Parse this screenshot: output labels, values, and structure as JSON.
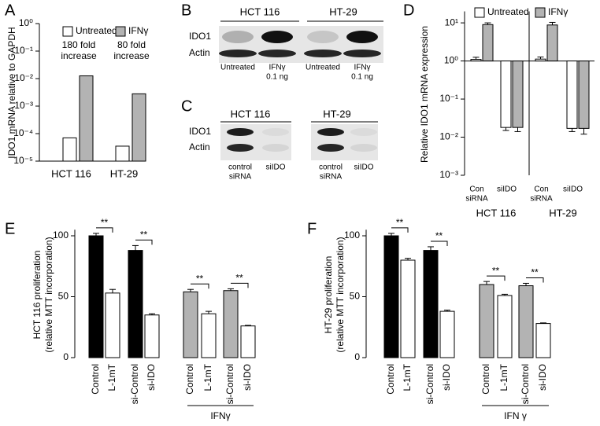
{
  "chart_data": [
    {
      "panel": "A",
      "type": "bar",
      "log_scale": true,
      "categories": [
        "HCT 116",
        "HT-29"
      ],
      "series": [
        {
          "name": "Untreated",
          "color": "#ffffff",
          "values": [
            7e-05,
            3.5e-05
          ]
        },
        {
          "name": "IFNγ",
          "color": "#b3b3b3",
          "values": [
            0.0126,
            0.0028
          ]
        }
      ],
      "ylim": [
        1e-05,
        1
      ],
      "yticks": [
        {
          "value": 1e-05,
          "label": "10⁻⁵"
        },
        {
          "value": 0.0001,
          "label": "10⁻⁴"
        },
        {
          "value": 0.001,
          "label": "10⁻³"
        },
        {
          "value": 0.01,
          "label": "10⁻²"
        },
        {
          "value": 0.1,
          "label": "10⁻¹"
        },
        {
          "value": 1,
          "label": "10⁰"
        }
      ],
      "ylabel": [
        "IDO1 mRNA relative to GAPDH"
      ],
      "annotations": [
        [
          "180 fold",
          "increase"
        ],
        [
          "80 fold",
          "increase"
        ]
      ],
      "legend": "top"
    },
    {
      "panel": "D",
      "type": "bar",
      "log_scale": true,
      "bar_origin": 1,
      "categories": [
        [
          "Con",
          "siRNA"
        ],
        [
          "siIDO"
        ],
        [
          "Con",
          "siRNA"
        ],
        [
          "siIDO"
        ]
      ],
      "groups": [
        "HCT 116",
        "HT-29"
      ],
      "series": [
        {
          "name": "Untreated",
          "color": "#ffffff",
          "values": [
            1.1,
            0.018,
            1.12,
            0.017
          ],
          "errors": [
            0.15,
            0.003,
            0.15,
            0.003
          ]
        },
        {
          "name": "IFNγ",
          "color": "#b3b3b3",
          "values": [
            9,
            0.018,
            8.8,
            0.017
          ],
          "errors": [
            1,
            0.004,
            1.5,
            0.005
          ]
        }
      ],
      "ylim": [
        0.001,
        20
      ],
      "yticks": [
        {
          "value": 0.001,
          "label": "10⁻³"
        },
        {
          "value": 0.01,
          "label": "10⁻²"
        },
        {
          "value": 0.1,
          "label": "10⁻¹"
        },
        {
          "value": 1,
          "label": "10⁰"
        },
        {
          "value": 10,
          "label": "10¹"
        }
      ],
      "ylabel": [
        "Relative IDO1 mRNA expression"
      ],
      "legend": "top"
    },
    {
      "panel": "E",
      "type": "bar",
      "categories": [
        "Control",
        "L-1mT",
        "si-Control",
        "si-IDO",
        "Control",
        "L-1mT",
        "si-Control",
        "si-IDO"
      ],
      "values": [
        100,
        53,
        88,
        35,
        54,
        36,
        55,
        26
      ],
      "errors": [
        2,
        3,
        4,
        1,
        2,
        2,
        1.5,
        0.5
      ],
      "colors": [
        "#000000",
        "#ffffff",
        "#000000",
        "#ffffff",
        "#b3b3b3",
        "#ffffff",
        "#b3b3b3",
        "#ffffff"
      ],
      "ylim": [
        0,
        105
      ],
      "yticks": [
        0,
        50,
        100
      ],
      "ylabel": [
        "HCT 116 proliferation",
        "(relative MTT incorporation)"
      ],
      "annotations": [
        "**",
        "**",
        "**",
        "**"
      ],
      "group_label": "IFNγ"
    },
    {
      "panel": "F",
      "type": "bar",
      "categories": [
        "Control",
        "L-1mT",
        "si-Control",
        "si-IDO",
        "Control",
        "L-1mT",
        "si-Control",
        "si-IDO"
      ],
      "values": [
        100,
        80,
        88,
        38,
        60,
        51,
        59,
        28
      ],
      "errors": [
        2,
        1.5,
        3,
        1,
        2.5,
        1,
        2,
        0.5
      ],
      "colors": [
        "#000000",
        "#ffffff",
        "#000000",
        "#ffffff",
        "#b3b3b3",
        "#ffffff",
        "#b3b3b3",
        "#ffffff"
      ],
      "ylim": [
        0,
        105
      ],
      "yticks": [
        0,
        50,
        100
      ],
      "ylabel": [
        "HT-29 proliferation",
        "(relative MTT incorporation)"
      ],
      "annotations": [
        "**",
        "**",
        "**",
        "**"
      ],
      "group_label": "IFN γ"
    }
  ],
  "blots": [
    {
      "panel": "B",
      "groups": [
        "HCT 116",
        "HT-29"
      ],
      "rows": [
        "IDO1",
        "Actin"
      ],
      "lanes": [
        [
          "Untreated"
        ],
        [
          "IFNγ",
          "0.1 ng"
        ],
        [
          "Untreated"
        ],
        [
          "IFNγ",
          "0.1 ng"
        ]
      ]
    },
    {
      "panel": "C",
      "groups": [
        "HCT 116",
        "HT-29"
      ],
      "rows": [
        "IDO1",
        "Actin"
      ],
      "lanes": [
        [
          "control",
          "siRNA"
        ],
        [
          "siIDO"
        ],
        [
          "control",
          "siRNA"
        ],
        [
          "siIDO"
        ]
      ]
    }
  ]
}
